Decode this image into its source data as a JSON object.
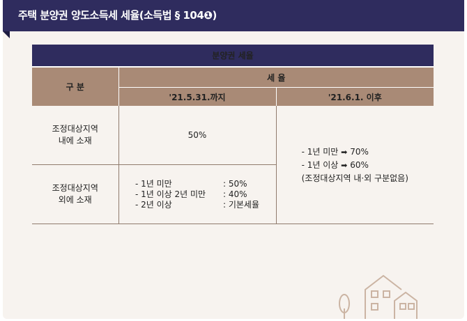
{
  "header": {
    "title": "주택 분양권 양도소득세 세율(소득법 § 104❶)"
  },
  "table": {
    "caption": "분양권 세율",
    "gubun": "구 분",
    "rate_header": "세  율",
    "col_before": "'21.5.31.까지",
    "col_after": "'21.6.1. 이후",
    "rows": [
      {
        "label_line1": "조정대상지역",
        "label_line2": "내에 소재",
        "before": "50%"
      },
      {
        "label_line1": "조정대상지역",
        "label_line2": "외에 소재",
        "before_items": [
          {
            "k": "- 1년 미만",
            "v": ": 50%"
          },
          {
            "k": "- 1년 이상 2년 미만",
            "v": ": 40%"
          },
          {
            "k": "- 2년 이상",
            "v": ": 기본세율"
          }
        ]
      }
    ],
    "after": {
      "line1_pre": "- 1년 미만",
      "line1_val": "70%",
      "line2_pre": "- 1년 이상",
      "line2_val": "60%",
      "line3": "(조정대상지역 내·외 구분없음)"
    }
  },
  "icons": {
    "arrow": "➡",
    "decoration": "house-icon"
  }
}
